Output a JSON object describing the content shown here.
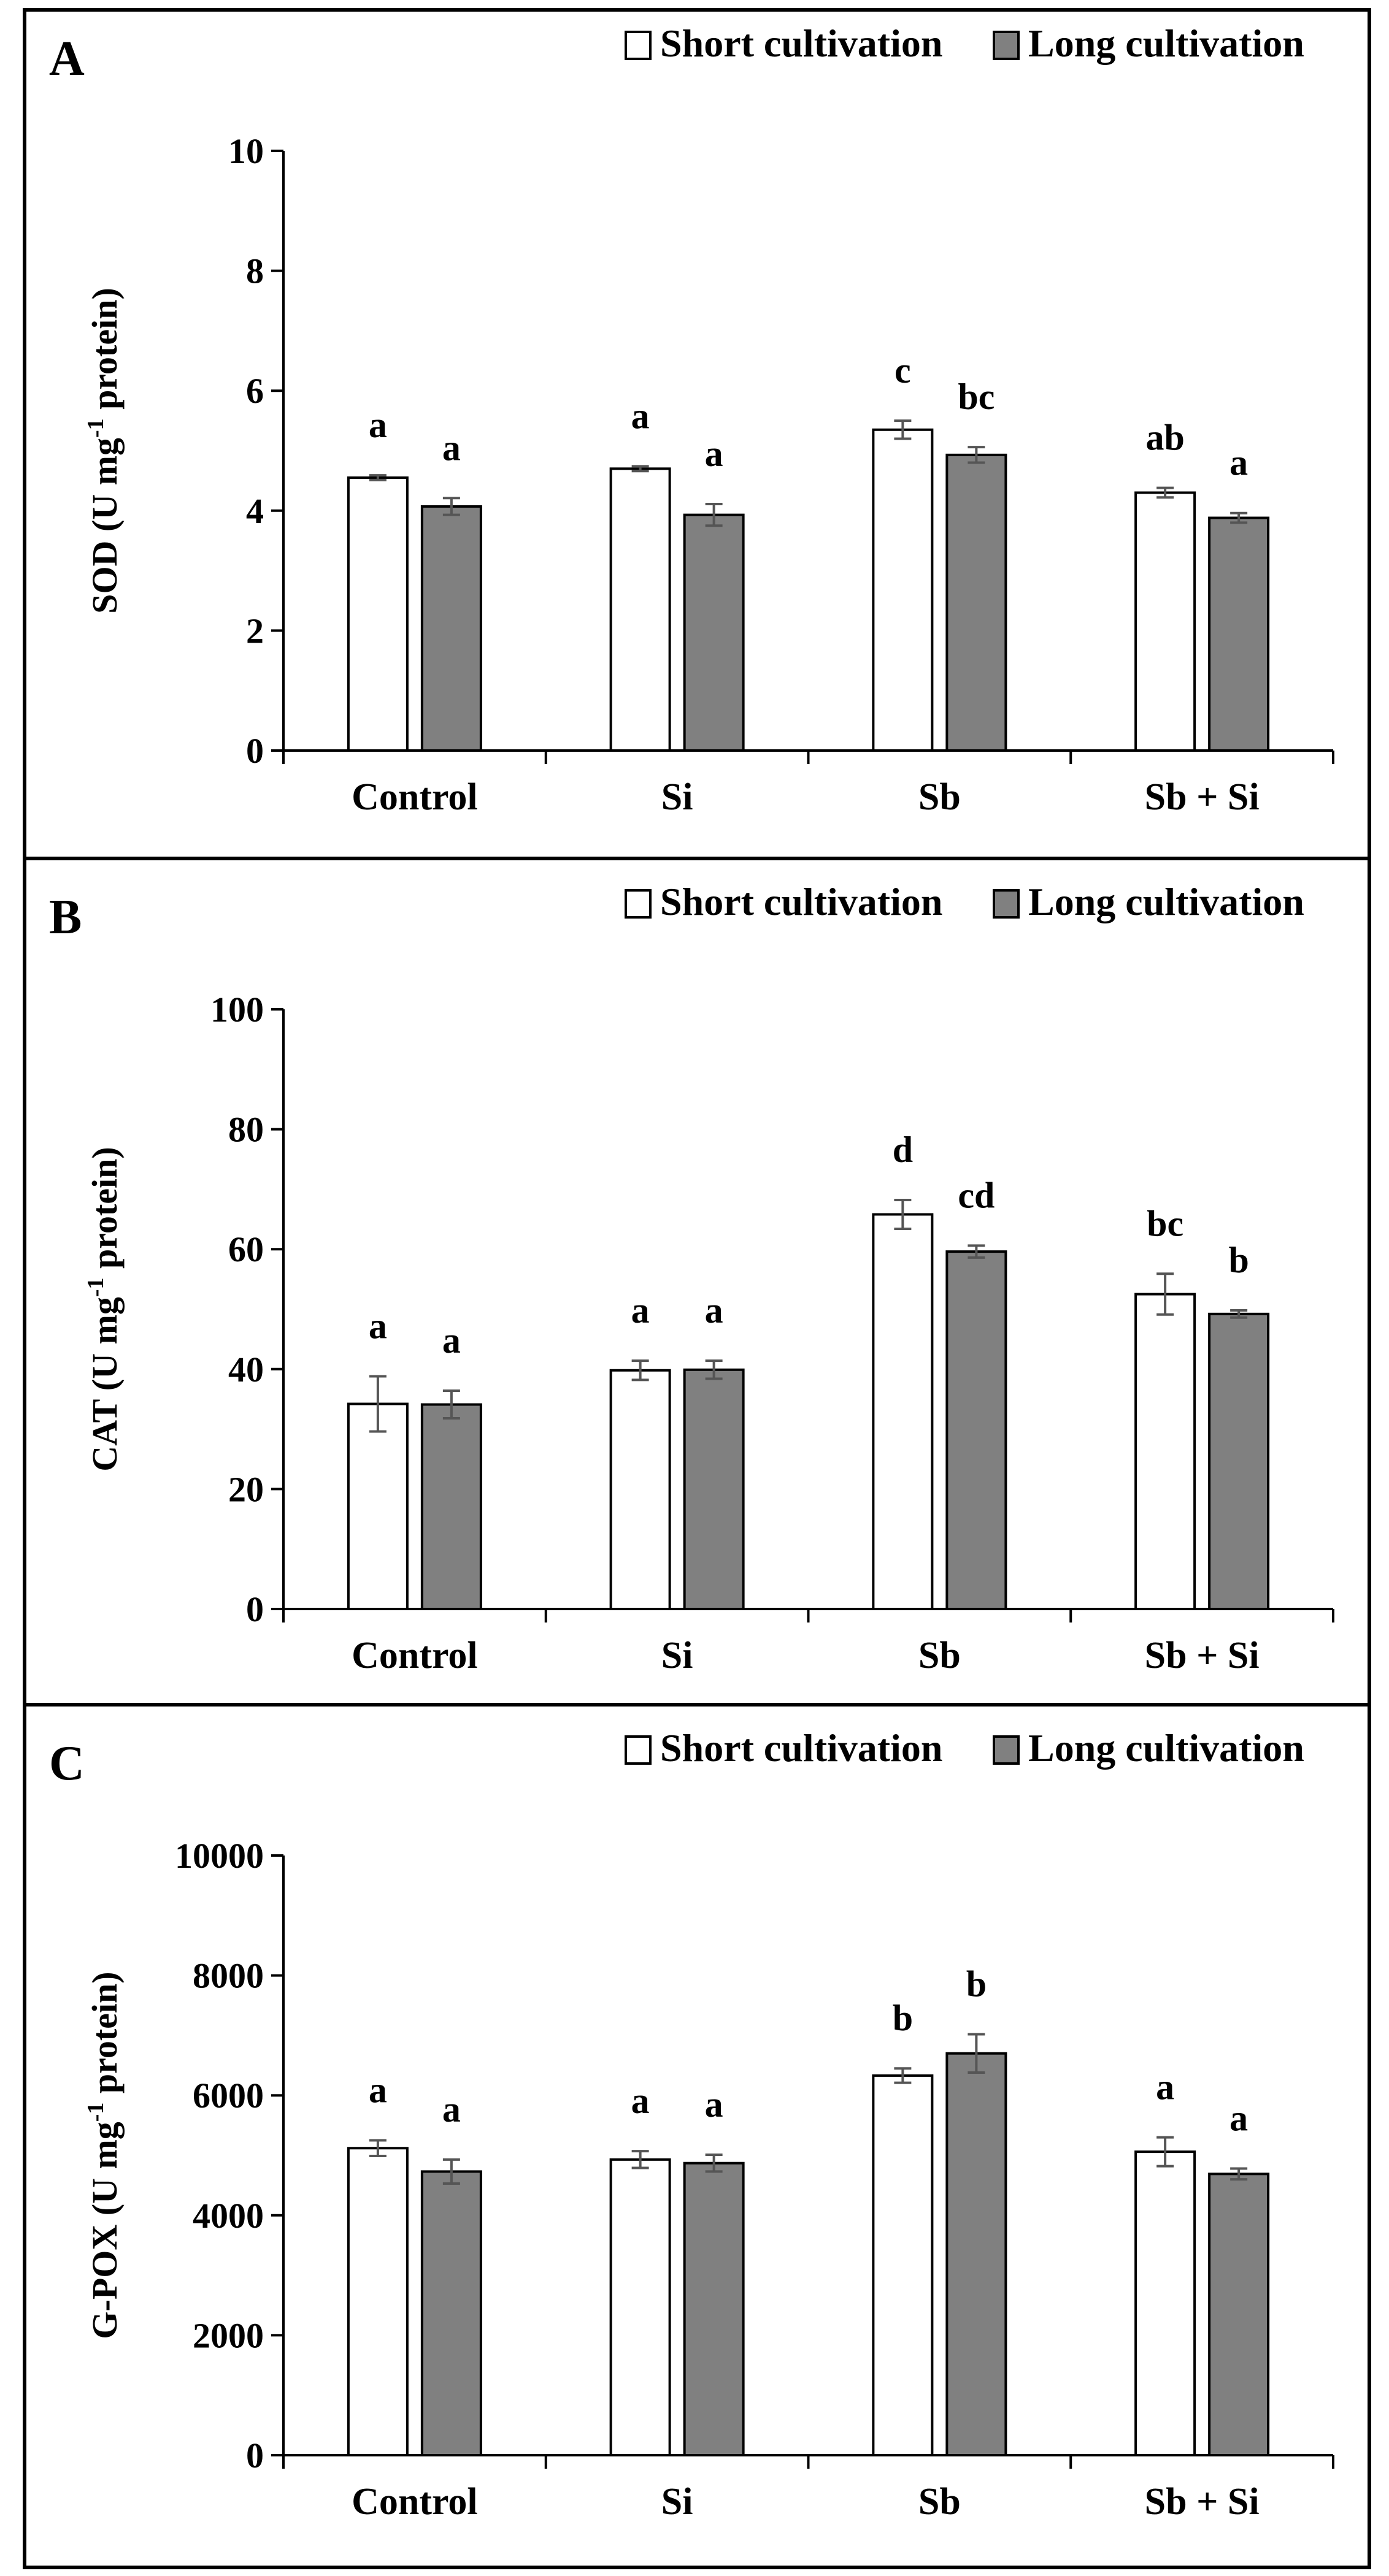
{
  "colors": {
    "short": "#ffffff",
    "long": "#808080",
    "bar_stroke": "#000000",
    "error_bar": "#555555",
    "frame": "#000000"
  },
  "chart_data": [
    {
      "type": "bar",
      "panel": "A",
      "ylabel": "SOD (U mg-1 protein)",
      "ylabel_parts": {
        "pre": "SOD (U mg",
        "sup": "-1",
        "post": " protein)"
      },
      "ylim": [
        0,
        10
      ],
      "yticks": [
        0,
        2,
        4,
        6,
        8,
        10
      ],
      "categories": [
        "Control",
        "Si",
        "Sb",
        "Sb + Si"
      ],
      "legend": [
        "Short cultivation",
        "Long cultivation"
      ],
      "legend_position": "top-right",
      "series": [
        {
          "name": "Short cultivation",
          "values": [
            4.55,
            4.7,
            5.35,
            4.3
          ],
          "errors": [
            0.04,
            0.04,
            0.15,
            0.08
          ],
          "labels": [
            "a",
            "a",
            "c",
            "ab"
          ]
        },
        {
          "name": "Long cultivation",
          "values": [
            4.07,
            3.93,
            4.93,
            3.88
          ],
          "errors": [
            0.14,
            0.18,
            0.13,
            0.08
          ],
          "labels": [
            "a",
            "a",
            "bc",
            "a"
          ]
        }
      ]
    },
    {
      "type": "bar",
      "panel": "B",
      "ylabel": "CAT (U mg-1 protein)",
      "ylabel_parts": {
        "pre": "CAT (U mg",
        "sup": "-1",
        "post": " protein)"
      },
      "ylim": [
        0,
        100
      ],
      "yticks": [
        0,
        20,
        40,
        60,
        80,
        100
      ],
      "categories": [
        "Control",
        "Si",
        "Sb",
        "Sb + Si"
      ],
      "legend": [
        "Short cultivation",
        "Long cultivation"
      ],
      "legend_position": "top-right",
      "series": [
        {
          "name": "Short cultivation",
          "values": [
            34.2,
            39.8,
            65.8,
            52.5
          ],
          "errors": [
            4.6,
            1.6,
            2.4,
            3.4
          ],
          "labels": [
            "a",
            "a",
            "d",
            "bc"
          ]
        },
        {
          "name": "Long cultivation",
          "values": [
            34.1,
            39.9,
            59.6,
            49.2
          ],
          "errors": [
            2.3,
            1.5,
            1.0,
            0.6
          ],
          "labels": [
            "a",
            "a",
            "cd",
            "b"
          ]
        }
      ]
    },
    {
      "type": "bar",
      "panel": "C",
      "ylabel": "G-POX (U mg-1 protein)",
      "ylabel_parts": {
        "pre": "G-POX (U mg",
        "sup": "-1",
        "post": " protein)"
      },
      "ylim": [
        0,
        10000
      ],
      "yticks": [
        0,
        2000,
        4000,
        6000,
        8000,
        10000
      ],
      "categories": [
        "Control",
        "Si",
        "Sb",
        "Sb + Si"
      ],
      "legend": [
        "Short cultivation",
        "Long cultivation"
      ],
      "legend_position": "top-right",
      "series": [
        {
          "name": "Short cultivation",
          "values": [
            5120,
            4930,
            6330,
            5060
          ],
          "errors": [
            130,
            140,
            120,
            240
          ],
          "labels": [
            "a",
            "a",
            "b",
            "a"
          ]
        },
        {
          "name": "Long cultivation",
          "values": [
            4730,
            4870,
            6700,
            4690
          ],
          "errors": [
            200,
            140,
            320,
            90
          ],
          "labels": [
            "a",
            "a",
            "b",
            "a"
          ]
        }
      ]
    }
  ]
}
